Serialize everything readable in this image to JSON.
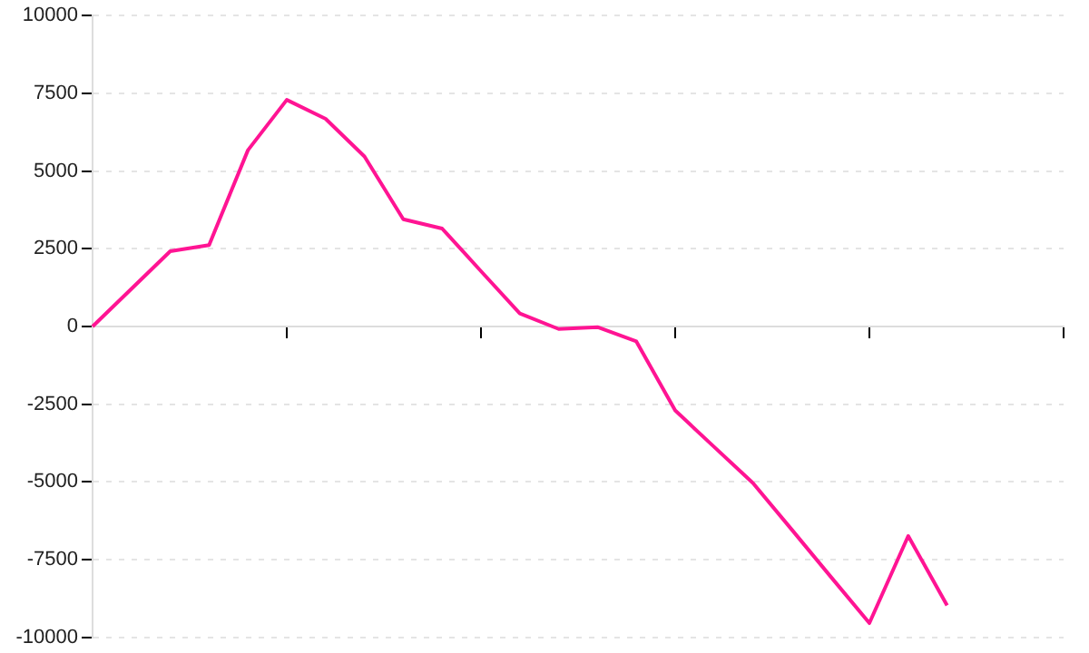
{
  "chart_data": {
    "type": "line",
    "categories": [
      null,
      null,
      null,
      null,
      null,
      null,
      null,
      null,
      null,
      null,
      null,
      null,
      null,
      null,
      null,
      null,
      null,
      null,
      null,
      null,
      null,
      null,
      null,
      null,
      null,
      null
    ],
    "series": [
      {
        "color": "#ff1493",
        "values": [
          0,
          1210,
          2420,
          2620,
          5670,
          7290,
          6680,
          5470,
          3450,
          3150,
          1780,
          420,
          -80,
          -20,
          -480,
          -2700,
          -3870,
          -5030,
          -6530,
          -8040,
          -9540,
          -6740,
          -8970,
          null,
          null,
          null
        ]
      }
    ],
    "ylim": [
      -10000,
      10000
    ],
    "yticks": [
      -10000,
      -7500,
      -5000,
      -2500,
      0,
      2500,
      5000,
      7500,
      10000
    ],
    "tick_labels": "y",
    "grid": "y",
    "legend": false,
    "marker": "none",
    "line_style": "solid"
  }
}
